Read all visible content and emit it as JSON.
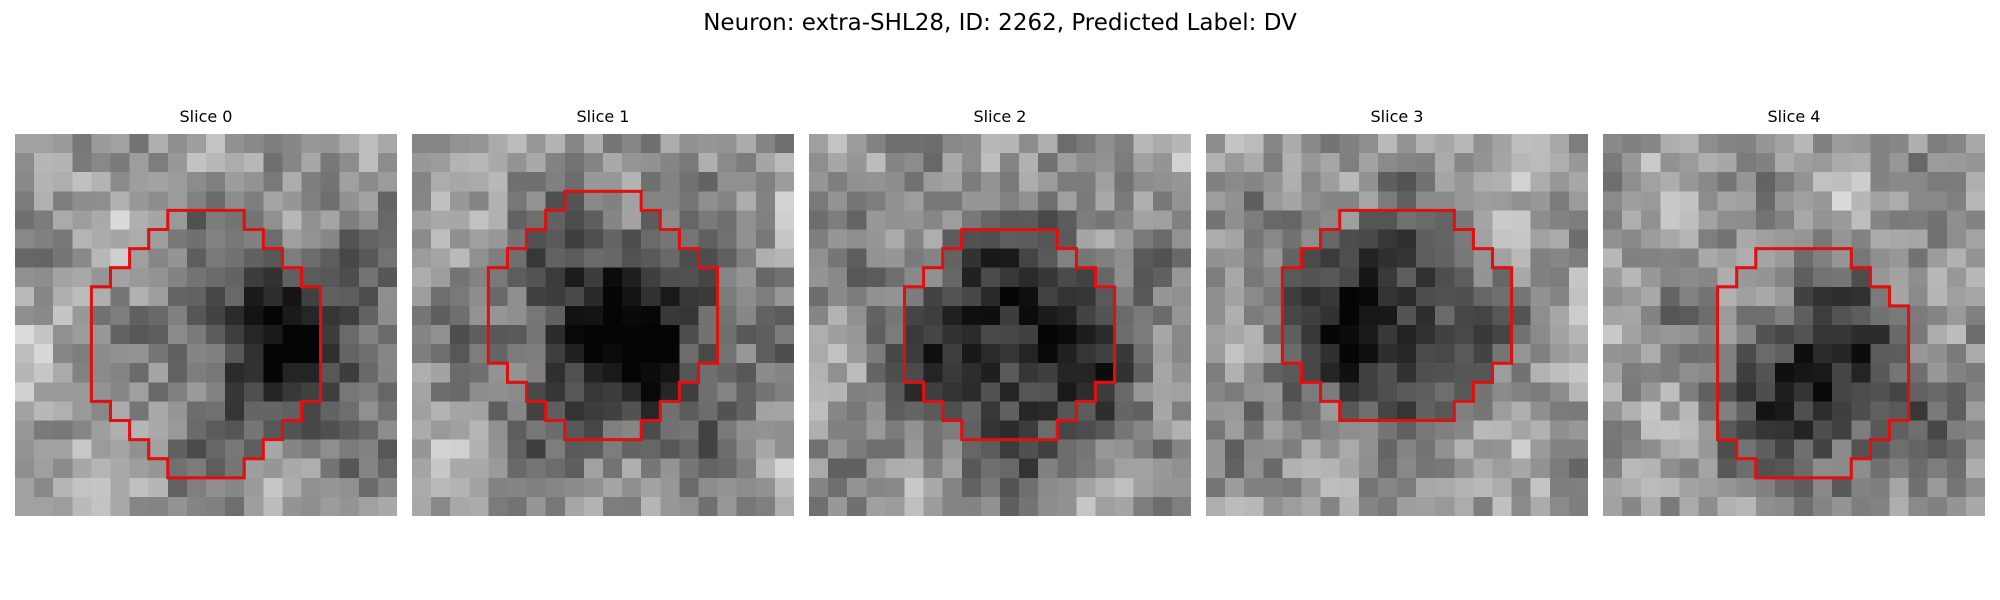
{
  "figure": {
    "title": "Neuron: extra-SHL28, ID: 2262, Predicted Label: DV",
    "contour_color": "#e01010",
    "colormap": "gray"
  },
  "panels": [
    {
      "title": "Slice 0",
      "blob": {
        "cx": 13.5,
        "cy": 10.5,
        "r": 4.5,
        "strength": 0.55
      },
      "seed": 11,
      "contour": [
        [
          4,
          8
        ],
        [
          5,
          8
        ],
        [
          5,
          7
        ],
        [
          6,
          7
        ],
        [
          6,
          6
        ],
        [
          7,
          6
        ],
        [
          7,
          5
        ],
        [
          8,
          5
        ],
        [
          8,
          4
        ],
        [
          9,
          4
        ],
        [
          10,
          4
        ],
        [
          11,
          4
        ],
        [
          12,
          4
        ],
        [
          12,
          5
        ],
        [
          13,
          5
        ],
        [
          13,
          6
        ],
        [
          14,
          6
        ],
        [
          14,
          7
        ],
        [
          15,
          7
        ],
        [
          15,
          8
        ],
        [
          16,
          8
        ],
        [
          16,
          9
        ],
        [
          16,
          10
        ],
        [
          16,
          11
        ],
        [
          16,
          12
        ],
        [
          16,
          13
        ],
        [
          16,
          14
        ],
        [
          15,
          14
        ],
        [
          15,
          15
        ],
        [
          14,
          15
        ],
        [
          14,
          16
        ],
        [
          13,
          16
        ],
        [
          13,
          17
        ],
        [
          12,
          17
        ],
        [
          12,
          18
        ],
        [
          11,
          18
        ],
        [
          10,
          18
        ],
        [
          9,
          18
        ],
        [
          8,
          18
        ],
        [
          8,
          17
        ],
        [
          7,
          17
        ],
        [
          7,
          16
        ],
        [
          6,
          16
        ],
        [
          6,
          15
        ],
        [
          5,
          15
        ],
        [
          5,
          14
        ],
        [
          4,
          14
        ],
        [
          4,
          13
        ],
        [
          4,
          12
        ],
        [
          4,
          11
        ],
        [
          4,
          10
        ],
        [
          4,
          9
        ]
      ]
    },
    {
      "title": "Slice 1",
      "blob": {
        "cx": 10.5,
        "cy": 10.0,
        "r": 5.0,
        "strength": 0.6
      },
      "seed": 23,
      "contour": [
        [
          4,
          7
        ],
        [
          5,
          7
        ],
        [
          5,
          6
        ],
        [
          6,
          6
        ],
        [
          6,
          5
        ],
        [
          7,
          5
        ],
        [
          7,
          4
        ],
        [
          8,
          4
        ],
        [
          8,
          3
        ],
        [
          9,
          3
        ],
        [
          10,
          3
        ],
        [
          11,
          3
        ],
        [
          12,
          3
        ],
        [
          12,
          4
        ],
        [
          13,
          4
        ],
        [
          13,
          5
        ],
        [
          14,
          5
        ],
        [
          14,
          6
        ],
        [
          15,
          6
        ],
        [
          15,
          7
        ],
        [
          16,
          7
        ],
        [
          16,
          8
        ],
        [
          16,
          9
        ],
        [
          16,
          10
        ],
        [
          16,
          11
        ],
        [
          16,
          12
        ],
        [
          15,
          12
        ],
        [
          15,
          13
        ],
        [
          14,
          13
        ],
        [
          14,
          14
        ],
        [
          13,
          14
        ],
        [
          13,
          15
        ],
        [
          12,
          15
        ],
        [
          12,
          16
        ],
        [
          11,
          16
        ],
        [
          10,
          16
        ],
        [
          9,
          16
        ],
        [
          8,
          16
        ],
        [
          8,
          15
        ],
        [
          7,
          15
        ],
        [
          7,
          14
        ],
        [
          6,
          14
        ],
        [
          6,
          13
        ],
        [
          5,
          13
        ],
        [
          5,
          12
        ],
        [
          4,
          12
        ],
        [
          4,
          11
        ],
        [
          4,
          10
        ],
        [
          4,
          9
        ],
        [
          4,
          8
        ]
      ]
    },
    {
      "title": "Slice 2",
      "blob": {
        "cx": 10.5,
        "cy": 10.5,
        "r": 5.5,
        "strength": 0.55
      },
      "seed": 37,
      "contour": [
        [
          5,
          8
        ],
        [
          6,
          8
        ],
        [
          6,
          7
        ],
        [
          7,
          7
        ],
        [
          7,
          6
        ],
        [
          8,
          6
        ],
        [
          8,
          5
        ],
        [
          9,
          5
        ],
        [
          10,
          5
        ],
        [
          11,
          5
        ],
        [
          12,
          5
        ],
        [
          13,
          5
        ],
        [
          13,
          6
        ],
        [
          14,
          6
        ],
        [
          14,
          7
        ],
        [
          15,
          7
        ],
        [
          15,
          8
        ],
        [
          16,
          8
        ],
        [
          16,
          9
        ],
        [
          16,
          10
        ],
        [
          16,
          11
        ],
        [
          16,
          12
        ],
        [
          16,
          13
        ],
        [
          15,
          13
        ],
        [
          15,
          14
        ],
        [
          14,
          14
        ],
        [
          14,
          15
        ],
        [
          13,
          15
        ],
        [
          13,
          16
        ],
        [
          12,
          16
        ],
        [
          11,
          16
        ],
        [
          10,
          16
        ],
        [
          9,
          16
        ],
        [
          8,
          16
        ],
        [
          8,
          15
        ],
        [
          7,
          15
        ],
        [
          7,
          14
        ],
        [
          6,
          14
        ],
        [
          6,
          13
        ],
        [
          5,
          13
        ],
        [
          5,
          12
        ],
        [
          5,
          11
        ],
        [
          5,
          10
        ],
        [
          5,
          9
        ]
      ]
    },
    {
      "title": "Slice 3",
      "blob": {
        "cx": 8.5,
        "cy": 9.5,
        "r": 4.5,
        "strength": 0.55
      },
      "seed": 41,
      "contour": [
        [
          4,
          7
        ],
        [
          5,
          7
        ],
        [
          5,
          6
        ],
        [
          6,
          6
        ],
        [
          6,
          5
        ],
        [
          7,
          5
        ],
        [
          7,
          4
        ],
        [
          8,
          4
        ],
        [
          9,
          4
        ],
        [
          10,
          4
        ],
        [
          11,
          4
        ],
        [
          12,
          4
        ],
        [
          13,
          4
        ],
        [
          13,
          5
        ],
        [
          14,
          5
        ],
        [
          14,
          6
        ],
        [
          15,
          6
        ],
        [
          15,
          7
        ],
        [
          16,
          7
        ],
        [
          16,
          8
        ],
        [
          16,
          9
        ],
        [
          16,
          10
        ],
        [
          16,
          11
        ],
        [
          16,
          12
        ],
        [
          15,
          12
        ],
        [
          15,
          13
        ],
        [
          14,
          13
        ],
        [
          14,
          14
        ],
        [
          13,
          14
        ],
        [
          13,
          15
        ],
        [
          12,
          15
        ],
        [
          11,
          15
        ],
        [
          10,
          15
        ],
        [
          9,
          15
        ],
        [
          8,
          15
        ],
        [
          7,
          15
        ],
        [
          7,
          14
        ],
        [
          6,
          14
        ],
        [
          6,
          13
        ],
        [
          5,
          13
        ],
        [
          5,
          12
        ],
        [
          4,
          12
        ],
        [
          4,
          11
        ],
        [
          4,
          10
        ],
        [
          4,
          9
        ],
        [
          4,
          8
        ]
      ]
    },
    {
      "title": "Slice 4",
      "blob": {
        "cx": 11.0,
        "cy": 12.5,
        "r": 4.5,
        "strength": 0.5
      },
      "seed": 53,
      "contour": [
        [
          6,
          8
        ],
        [
          7,
          8
        ],
        [
          7,
          7
        ],
        [
          8,
          7
        ],
        [
          8,
          6
        ],
        [
          9,
          6
        ],
        [
          10,
          6
        ],
        [
          11,
          6
        ],
        [
          12,
          6
        ],
        [
          13,
          6
        ],
        [
          13,
          7
        ],
        [
          14,
          7
        ],
        [
          14,
          8
        ],
        [
          15,
          8
        ],
        [
          15,
          9
        ],
        [
          16,
          9
        ],
        [
          16,
          10
        ],
        [
          16,
          11
        ],
        [
          16,
          12
        ],
        [
          16,
          13
        ],
        [
          16,
          14
        ],
        [
          16,
          15
        ],
        [
          15,
          15
        ],
        [
          15,
          16
        ],
        [
          14,
          16
        ],
        [
          14,
          17
        ],
        [
          13,
          17
        ],
        [
          13,
          18
        ],
        [
          12,
          18
        ],
        [
          11,
          18
        ],
        [
          10,
          18
        ],
        [
          9,
          18
        ],
        [
          8,
          18
        ],
        [
          8,
          17
        ],
        [
          7,
          17
        ],
        [
          7,
          16
        ],
        [
          6,
          16
        ],
        [
          6,
          15
        ],
        [
          6,
          14
        ],
        [
          6,
          13
        ],
        [
          6,
          12
        ],
        [
          6,
          11
        ],
        [
          6,
          10
        ],
        [
          6,
          9
        ]
      ]
    }
  ]
}
